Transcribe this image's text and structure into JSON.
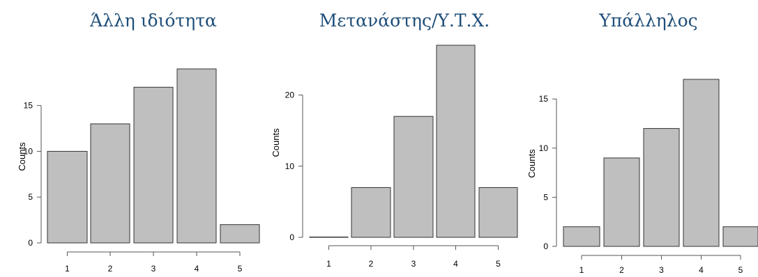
{
  "chart_data": [
    {
      "type": "bar",
      "title": "Άλλη ιδιότητα",
      "ylabel": "Counts",
      "categories": [
        "1",
        "2",
        "3",
        "4",
        "5"
      ],
      "values": [
        10,
        13,
        17,
        19,
        2
      ],
      "yticks": [
        0,
        5,
        10,
        15
      ],
      "ylim": [
        0,
        19
      ]
    },
    {
      "type": "bar",
      "title": "Μετανάστης/Υ.Τ.Χ.",
      "ylabel": "Counts",
      "categories": [
        "1",
        "2",
        "3",
        "4",
        "5"
      ],
      "values": [
        0,
        7,
        17,
        27,
        7
      ],
      "yticks": [
        0,
        10,
        20
      ],
      "ylim": [
        0,
        27
      ]
    },
    {
      "type": "bar",
      "title": "Υπάλληλος",
      "ylabel": "Counts",
      "categories": [
        "1",
        "2",
        "3",
        "4",
        "5"
      ],
      "values": [
        2,
        9,
        12,
        17,
        2
      ],
      "yticks": [
        0,
        5,
        10,
        15
      ],
      "ylim": [
        0,
        17
      ]
    }
  ],
  "colors": {
    "bar_fill": "#bfbfbf",
    "bar_stroke": "#333333",
    "title": "#1f4e79"
  }
}
